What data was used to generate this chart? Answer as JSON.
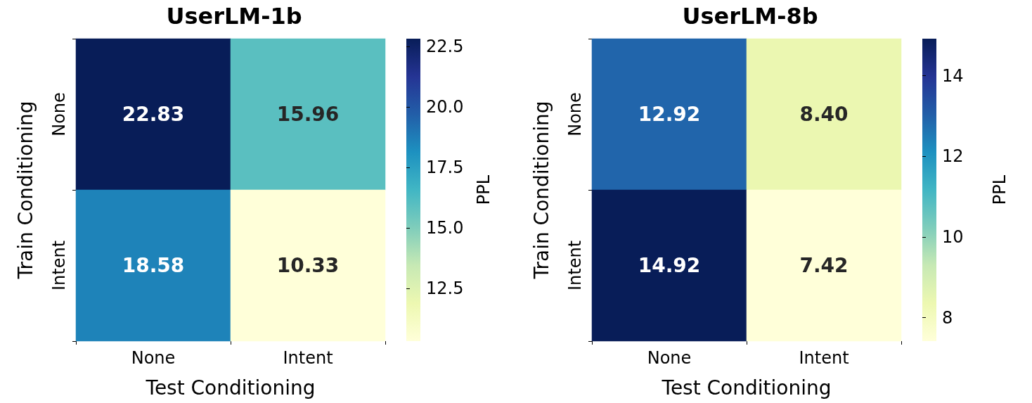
{
  "chart_data": [
    {
      "type": "heatmap",
      "title": "UserLM-1b",
      "xlabel": "Test Conditioning",
      "ylabel": "Train Conditioning",
      "clabel": "PPL",
      "categories": [
        "None",
        "Intent"
      ],
      "y_categories": [
        "None",
        "Intent"
      ],
      "cells": [
        [
          22.83,
          15.96
        ],
        [
          18.58,
          10.33
        ]
      ],
      "cell_labels": [
        [
          "22.83",
          "15.96"
        ],
        [
          "18.58",
          "10.33"
        ]
      ],
      "clim": [
        10.33,
        22.83
      ],
      "cticks": [
        12.5,
        {
          "value": 15,
          "label": "15.0"
        },
        17.5,
        {
          "value": 20,
          "label": "20.0"
        },
        22.5
      ]
    },
    {
      "type": "heatmap",
      "title": "UserLM-8b",
      "xlabel": "Test Conditioning",
      "ylabel": "Train Conditioning",
      "clabel": "PPL",
      "categories": [
        "None",
        "Intent"
      ],
      "y_categories": [
        "None",
        "Intent"
      ],
      "cells": [
        [
          12.92,
          8.4
        ],
        [
          14.92,
          7.42
        ]
      ],
      "cell_labels": [
        [
          "12.92",
          "8.40"
        ],
        [
          "14.92",
          "7.42"
        ]
      ],
      "clim": [
        7.42,
        14.92
      ],
      "cticks": [
        8,
        10,
        12,
        14
      ]
    }
  ]
}
